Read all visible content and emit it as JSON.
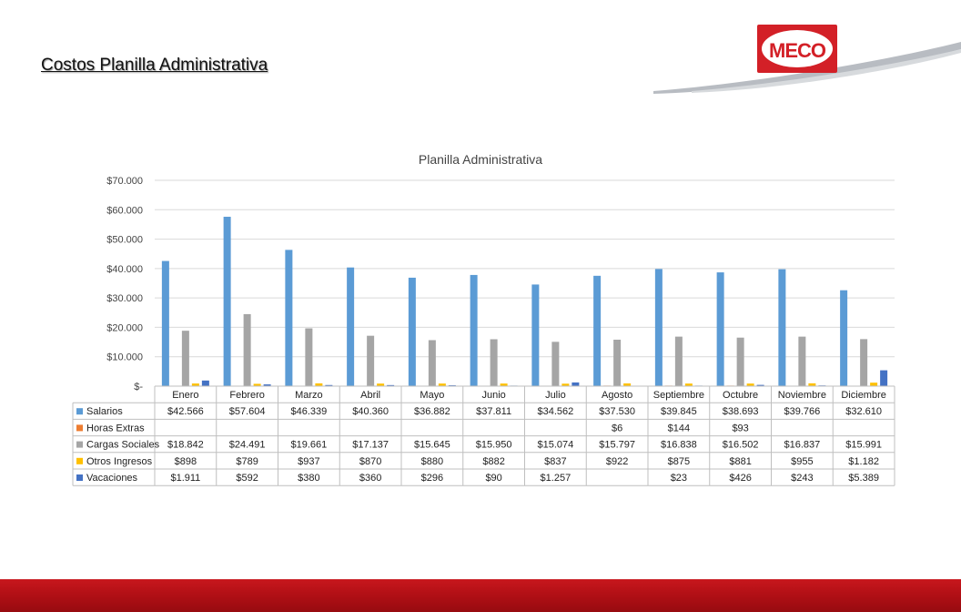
{
  "slide": {
    "title": "Costos Planilla Administrativa",
    "logo_text": "MECO"
  },
  "colors": {
    "brand_red": "#d32027",
    "band_red": "#b00f15"
  },
  "chart_data": {
    "type": "bar",
    "title": "Planilla Administrativa",
    "categories": [
      "Enero",
      "Febrero",
      "Marzo",
      "Abril",
      "Mayo",
      "Junio",
      "Julio",
      "Agosto",
      "Septiembre",
      "Octubre",
      "Noviembre",
      "Diciembre"
    ],
    "ylim": [
      0,
      70000
    ],
    "y_ticks": [
      0,
      10000,
      20000,
      30000,
      40000,
      50000,
      60000,
      70000
    ],
    "y_tick_labels": [
      "$-",
      "$10.000",
      "$20.000",
      "$30.000",
      "$40.000",
      "$50.000",
      "$60.000",
      "$70.000"
    ],
    "grid": true,
    "legend": "data-table",
    "series": [
      {
        "name": "Salarios",
        "color": "#5b9bd5",
        "values": [
          42566,
          57604,
          46339,
          40360,
          36882,
          37811,
          34562,
          37530,
          39845,
          38693,
          39766,
          32610
        ],
        "labels": [
          "$42.566",
          "$57.604",
          "$46.339",
          "$40.360",
          "$36.882",
          "$37.811",
          "$34.562",
          "$37.530",
          "$39.845",
          "$38.693",
          "$39.766",
          "$32.610"
        ]
      },
      {
        "name": "Horas Extras",
        "color": "#ed7d31",
        "values": [
          null,
          null,
          null,
          null,
          null,
          null,
          null,
          6,
          144,
          93,
          null,
          null
        ],
        "labels": [
          "",
          "",
          "",
          "",
          "",
          "",
          "",
          "$6",
          "$144",
          "$93",
          "",
          ""
        ]
      },
      {
        "name": "Cargas Sociales",
        "color": "#a5a5a5",
        "values": [
          18842,
          24491,
          19661,
          17137,
          15645,
          15950,
          15074,
          15797,
          16838,
          16502,
          16837,
          15991
        ],
        "labels": [
          "$18.842",
          "$24.491",
          "$19.661",
          "$17.137",
          "$15.645",
          "$15.950",
          "$15.074",
          "$15.797",
          "$16.838",
          "$16.502",
          "$16.837",
          "$15.991"
        ]
      },
      {
        "name": "Otros Ingresos",
        "color": "#ffc000",
        "values": [
          898,
          789,
          937,
          870,
          880,
          882,
          837,
          922,
          875,
          881,
          955,
          1182
        ],
        "labels": [
          "$898",
          "$789",
          "$937",
          "$870",
          "$880",
          "$882",
          "$837",
          "$922",
          "$875",
          "$881",
          "$955",
          "$1.182"
        ]
      },
      {
        "name": "Vacaciones",
        "color": "#4472c4",
        "values": [
          1911,
          592,
          380,
          360,
          296,
          90,
          1257,
          null,
          23,
          426,
          243,
          5389
        ],
        "labels": [
          "$1.911",
          "$592",
          "$380",
          "$360",
          "$296",
          "$90",
          "$1.257",
          "",
          "$23",
          "$426",
          "$243",
          "$5.389"
        ]
      }
    ]
  }
}
